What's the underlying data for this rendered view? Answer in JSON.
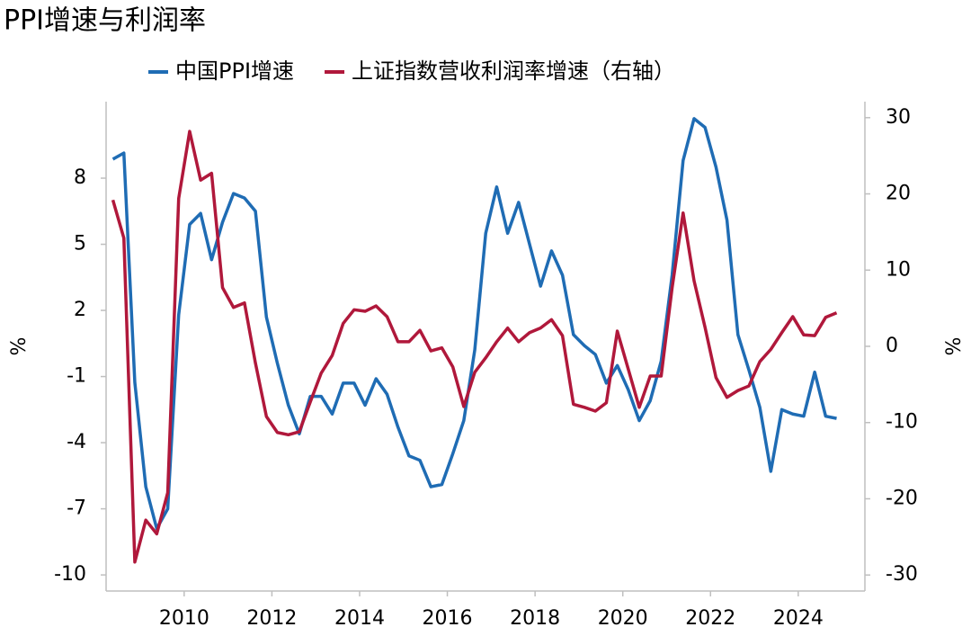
{
  "chart_data": {
    "type": "line",
    "title": "PPI增速与利润率",
    "ylabel": "%",
    "y2label": "%",
    "xlim": [
      2008.22,
      2025.52
    ],
    "xticks": [
      2010,
      2012,
      2014,
      2016,
      2018,
      2020,
      2022,
      2024
    ],
    "ylim": [
      -10.73,
      11.47
    ],
    "yticks": [
      -10,
      -7,
      -4,
      -1,
      2,
      5,
      8
    ],
    "y2lim": [
      -32.1,
      32.1
    ],
    "y2ticks": [
      -30,
      -20,
      -10,
      0,
      10,
      20,
      30
    ],
    "legend": "top",
    "x": [
      2008.375,
      2008.625,
      2008.875,
      2009.125,
      2009.375,
      2009.625,
      2009.875,
      2010.125,
      2010.375,
      2010.625,
      2010.875,
      2011.125,
      2011.375,
      2011.625,
      2011.875,
      2012.125,
      2012.375,
      2012.625,
      2012.875,
      2013.125,
      2013.375,
      2013.625,
      2013.875,
      2014.125,
      2014.375,
      2014.625,
      2014.875,
      2015.125,
      2015.375,
      2015.625,
      2015.875,
      2016.125,
      2016.375,
      2016.625,
      2016.875,
      2017.125,
      2017.375,
      2017.625,
      2017.875,
      2018.125,
      2018.375,
      2018.625,
      2018.875,
      2019.125,
      2019.375,
      2019.625,
      2019.875,
      2020.125,
      2020.375,
      2020.625,
      2020.875,
      2021.125,
      2021.375,
      2021.625,
      2021.875,
      2022.125,
      2022.375,
      2022.625,
      2022.875,
      2023.125,
      2023.375,
      2023.625,
      2023.875,
      2024.125,
      2024.375,
      2024.625,
      2024.875
    ],
    "series": [
      {
        "name": "中国PPI增速",
        "color": "#1f6cb4",
        "axis": "y",
        "values": [
          8.86,
          9.14,
          -1.27,
          -6.0,
          -7.9,
          -7.0,
          1.8,
          5.9,
          6.4,
          4.3,
          6.0,
          7.3,
          7.1,
          6.5,
          1.7,
          -0.4,
          -2.3,
          -3.6,
          -1.9,
          -1.9,
          -2.7,
          -1.3,
          -1.3,
          -2.3,
          -1.1,
          -1.8,
          -3.3,
          -4.6,
          -4.8,
          -6.0,
          -5.9,
          -4.5,
          -3.0,
          0.2,
          5.5,
          7.6,
          5.5,
          6.9,
          5.0,
          3.1,
          4.7,
          3.6,
          0.9,
          0.4,
          0.0,
          -1.3,
          -0.5,
          -1.6,
          -3.0,
          -2.1,
          -0.3,
          3.6,
          8.8,
          10.7,
          10.3,
          8.5,
          6.1,
          0.9,
          -0.7,
          -2.4,
          -5.3,
          -2.5,
          -2.7,
          -2.8,
          -0.8,
          -2.8,
          -2.9
        ]
      },
      {
        "name": "上证指数营收利润率增速（右轴）",
        "color": "#b0183b",
        "axis": "y2",
        "values": [
          19.2,
          14.2,
          -28.3,
          -22.8,
          -24.6,
          -19.2,
          19.4,
          28.2,
          21.8,
          22.7,
          7.7,
          5.1,
          5.7,
          -2.2,
          -9.2,
          -11.3,
          -11.6,
          -11.2,
          -7.3,
          -3.5,
          -1.2,
          3.0,
          4.8,
          4.6,
          5.3,
          3.9,
          0.6,
          0.6,
          2.1,
          -0.6,
          -0.2,
          -2.7,
          -7.9,
          -3.4,
          -1.5,
          0.6,
          2.4,
          0.6,
          1.8,
          2.4,
          3.5,
          1.4,
          -7.6,
          -8.0,
          -8.5,
          -7.4,
          2.0,
          -3.0,
          -8.0,
          -3.9,
          -3.9,
          7.7,
          17.5,
          8.6,
          2.5,
          -4.1,
          -6.7,
          -5.8,
          -5.2,
          -2.0,
          -0.4,
          1.8,
          3.9,
          1.5,
          1.4,
          3.8,
          4.4
        ]
      }
    ]
  }
}
